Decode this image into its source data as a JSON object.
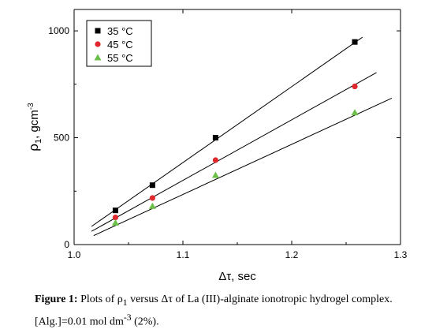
{
  "chart_data": {
    "type": "scatter",
    "xlabel": "Δτ, sec",
    "ylabel": "ρ1, gcm-3",
    "ylabel_parts": {
      "symbol": "ρ",
      "sub": "1",
      "unit": ", gcm",
      "sup": "-3"
    },
    "xlim": [
      1.0,
      1.3
    ],
    "ylim": [
      0,
      1100
    ],
    "x_ticks": [
      1.0,
      1.1,
      1.2,
      1.3
    ],
    "x_tick_labels": [
      "1.0",
      "1.1",
      "1.2",
      "1.3"
    ],
    "y_ticks": [
      0,
      500,
      1000
    ],
    "y_tick_labels": [
      "0",
      "500",
      "1000"
    ],
    "grid": false,
    "legend_position": "top-left",
    "series": [
      {
        "name": "35 °C",
        "marker": "square",
        "color": "#000000",
        "x": [
          1.038,
          1.072,
          1.13,
          1.258
        ],
        "y": [
          160,
          278,
          500,
          948
        ],
        "fit": {
          "x": [
            1.016,
            1.265
          ],
          "y": [
            85,
            970
          ]
        }
      },
      {
        "name": "45 °C",
        "marker": "circle",
        "color": "#e0282e",
        "x": [
          1.038,
          1.072,
          1.13,
          1.258
        ],
        "y": [
          127,
          218,
          395,
          740
        ],
        "fit": {
          "x": [
            1.016,
            1.278
          ],
          "y": [
            62,
            805
          ]
        }
      },
      {
        "name": "55 °C",
        "marker": "triangle",
        "color": "#6cc04a",
        "x": [
          1.038,
          1.072,
          1.13,
          1.258
        ],
        "y": [
          102,
          180,
          325,
          618
        ],
        "fit": {
          "x": [
            1.018,
            1.292
          ],
          "y": [
            42,
            685
          ]
        }
      }
    ]
  },
  "caption": {
    "label": "Figure 1:",
    "text_1": " Plots of ρ",
    "sub": "1",
    "text_2": " versus Δτ of La (III)-alginate ionotropic hydrogel complex. [Alg.]=0.01 mol dm",
    "sup": "-3",
    "text_3": " (2%)."
  }
}
